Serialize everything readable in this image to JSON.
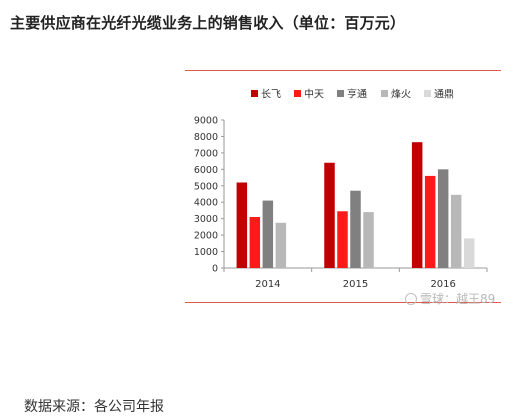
{
  "title": "主要供应商在光纤光缆业务上的销售收入（单位：百万元）",
  "source": "数据来源：各公司年报",
  "watermark": "雪球：越王89",
  "colors": {
    "rule": "#e05a4c",
    "axis": "#9a9a9a"
  },
  "chart_data": {
    "type": "bar",
    "categories": [
      "2014",
      "2015",
      "2016"
    ],
    "series": [
      {
        "name": "长飞",
        "values": [
          5200,
          6400,
          7650
        ],
        "color": "#c00000"
      },
      {
        "name": "中天",
        "values": [
          3100,
          3450,
          5600
        ],
        "color": "#ff1a1a"
      },
      {
        "name": "亨通",
        "values": [
          4100,
          4700,
          6000
        ],
        "color": "#808080"
      },
      {
        "name": "烽火",
        "values": [
          2750,
          3400,
          4450
        ],
        "color": "#b8b8b8"
      },
      {
        "name": "通鼎",
        "values": [
          null,
          null,
          1800
        ],
        "color": "#d9d9d9"
      }
    ],
    "yticks": [
      0,
      1000,
      2000,
      3000,
      4000,
      5000,
      6000,
      7000,
      8000,
      9000
    ],
    "ylim": [
      0,
      9000
    ],
    "xlabel": "",
    "ylabel": "",
    "legend_position": "top",
    "grid": false
  }
}
